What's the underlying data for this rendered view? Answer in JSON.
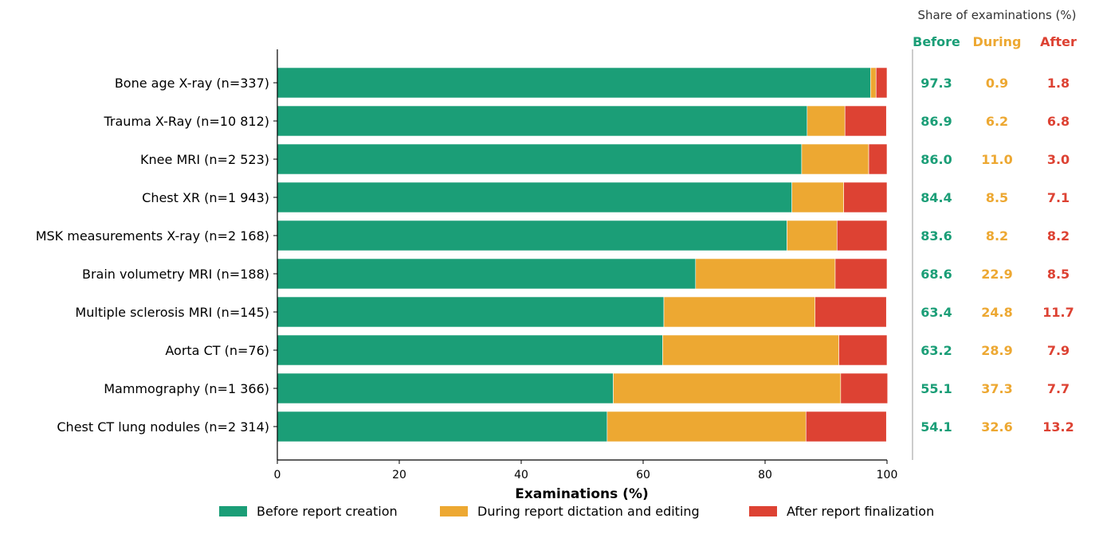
{
  "chart_data": {
    "type": "bar",
    "orientation": "horizontal",
    "stacked": true,
    "categories": [
      "Bone age X-ray  (n=337)",
      "Trauma X-Ray  (n=10 812)",
      "Knee MRI  (n=2 523)",
      "Chest XR  (n=1 943)",
      "MSK measurements X-ray  (n=2 168)",
      "Brain volumetry MRI  (n=188)",
      "Multiple sclerosis MRI  (n=145)",
      "Aorta CT  (n=76)",
      "Mammography  (n=1 366)",
      "Chest CT lung nodules  (n=2 314)"
    ],
    "series": [
      {
        "name": "Before report creation",
        "color": "#1b9e77",
        "values": [
          97.3,
          86.9,
          86.0,
          84.4,
          83.6,
          68.6,
          63.4,
          63.2,
          55.1,
          54.1
        ]
      },
      {
        "name": "During report dictation and editing",
        "color": "#eda832",
        "values": [
          0.9,
          6.2,
          11.0,
          8.5,
          8.2,
          22.9,
          24.8,
          28.9,
          37.3,
          32.6
        ]
      },
      {
        "name": "After report finalization",
        "color": "#dd4233",
        "values": [
          1.8,
          6.8,
          3.0,
          7.1,
          8.2,
          8.5,
          11.7,
          7.9,
          7.7,
          13.2
        ]
      }
    ],
    "value_labels": {
      "before": [
        "97.3",
        "86.9",
        "86.0",
        "84.4",
        "83.6",
        "68.6",
        "63.4",
        "63.2",
        "55.1",
        "54.1"
      ],
      "during": [
        "0.9",
        "6.2",
        "11.0",
        "8.5",
        "8.2",
        "22.9",
        "24.8",
        "28.9",
        "37.3",
        "32.6"
      ],
      "after": [
        "1.8",
        "6.8",
        "3.0",
        "7.1",
        "8.2",
        "8.5",
        "11.7",
        "7.9",
        "7.7",
        "13.2"
      ]
    },
    "xlabel": "Examinations (%)",
    "xlim": [
      0,
      100
    ],
    "xticks": [
      "0",
      "20",
      "40",
      "60",
      "80",
      "100"
    ],
    "table_title": "Share of examinations (%)",
    "table_headers": [
      "Before",
      "During",
      "After"
    ],
    "legend_labels": [
      "Before report creation",
      "During report dictation and editing",
      "After report finalization"
    ],
    "legend_position": "bottom",
    "grid": false
  }
}
